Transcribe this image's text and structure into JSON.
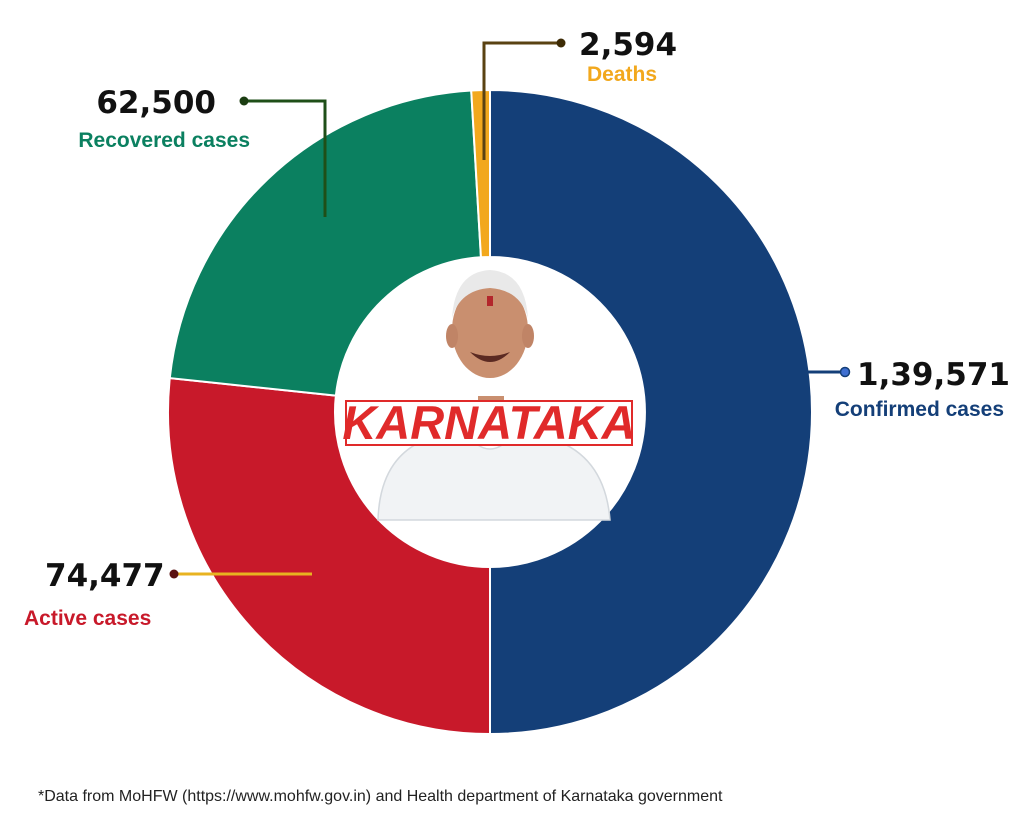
{
  "chart_data": {
    "type": "pie",
    "categories": [
      "Confirmed cases",
      "Active cases",
      "Recovered cases",
      "Deaths"
    ],
    "values": [
      139571,
      74477,
      62500,
      2594
    ],
    "display_values": [
      "1,39,571",
      "74,477",
      "62,500",
      "2,594"
    ],
    "colors": [
      "#143F78",
      "#C8192A",
      "#0B8060",
      "#F2A81D"
    ],
    "label_colors": [
      "#143F78",
      "#C8192A",
      "#0B8060",
      "#F2A81D"
    ],
    "donut": true,
    "center_text": "KARNATAKA"
  },
  "footnote": "*Data from MoHFW (https://www.mohfw.gov.in) and Health department of Karnataka government",
  "colors": {
    "center_text": "#E02A2A",
    "center_border": "#E02A2A"
  },
  "icons": {
    "center_image": "person-portrait"
  }
}
